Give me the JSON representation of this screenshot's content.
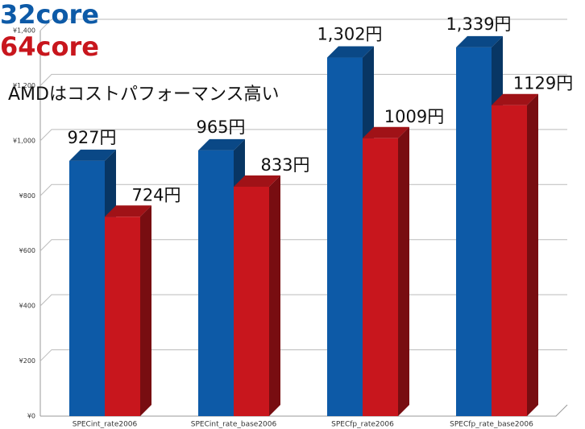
{
  "chart_data": {
    "type": "bar3d",
    "annotation": "AMDはコストパフォーマンス高い",
    "categories": [
      "SPECint_rate2006",
      "SPECint_rate_base2006",
      "SPECfp_rate2006",
      "SPECfp_rate_base2006"
    ],
    "series": [
      {
        "name": "32core",
        "color": "#0d5aa7",
        "values": [
          927,
          965,
          1302,
          1339
        ],
        "value_labels": [
          "927円",
          "965円",
          "1,302円",
          "1,339円"
        ]
      },
      {
        "name": "64core",
        "color": "#c8161d",
        "values": [
          724,
          833,
          1009,
          1129
        ],
        "value_labels": [
          "724円",
          "833円",
          "1009円",
          "1129円"
        ]
      }
    ],
    "ylim": [
      0,
      1400
    ],
    "yticks": [
      {
        "value": 0,
        "label": "¥0"
      },
      {
        "value": 200,
        "label": "¥200"
      },
      {
        "value": 400,
        "label": "¥400"
      },
      {
        "value": 600,
        "label": "¥600"
      },
      {
        "value": 800,
        "label": "¥800"
      },
      {
        "value": 1000,
        "label": "¥1,000"
      },
      {
        "value": 1200,
        "label": "¥1,200"
      },
      {
        "value": 1400,
        "label": "¥1,400"
      }
    ],
    "grid": true
  }
}
